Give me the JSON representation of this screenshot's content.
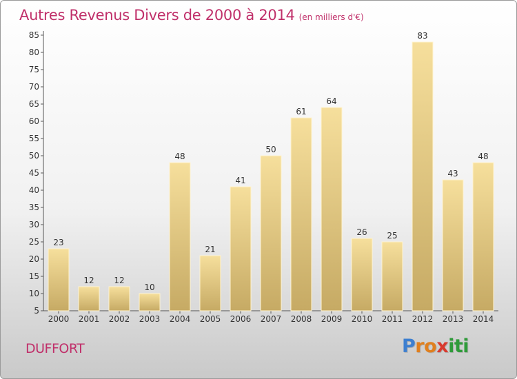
{
  "header": {
    "title": "Autres Revenus Divers de 2000 à 2014",
    "subtitle": "(en milliers d'€)"
  },
  "footer": {
    "place": "DUFFORT",
    "logo_letters": [
      "P",
      "r",
      "o",
      "x",
      "i",
      "t",
      "i"
    ],
    "logo_colors": [
      "#3d7fd0",
      "#e07f1e",
      "#e07f1e",
      "#d83a2e",
      "#2f9b3a",
      "#2f9b3a",
      "#2f9b3a"
    ]
  },
  "chart_data": {
    "type": "bar",
    "categories": [
      "2000",
      "2001",
      "2002",
      "2003",
      "2004",
      "2005",
      "2006",
      "2007",
      "2008",
      "2009",
      "2010",
      "2011",
      "2012",
      "2013",
      "2014"
    ],
    "values": [
      23,
      12,
      12,
      10,
      48,
      21,
      41,
      50,
      61,
      64,
      26,
      25,
      83,
      43,
      48
    ],
    "ylim": [
      5,
      85
    ],
    "yticks": [
      5,
      10,
      15,
      20,
      25,
      30,
      35,
      40,
      45,
      50,
      55,
      60,
      65,
      70,
      75,
      80,
      85
    ],
    "grid": false,
    "data_labels": true,
    "bar_color": "#e8c97d"
  }
}
